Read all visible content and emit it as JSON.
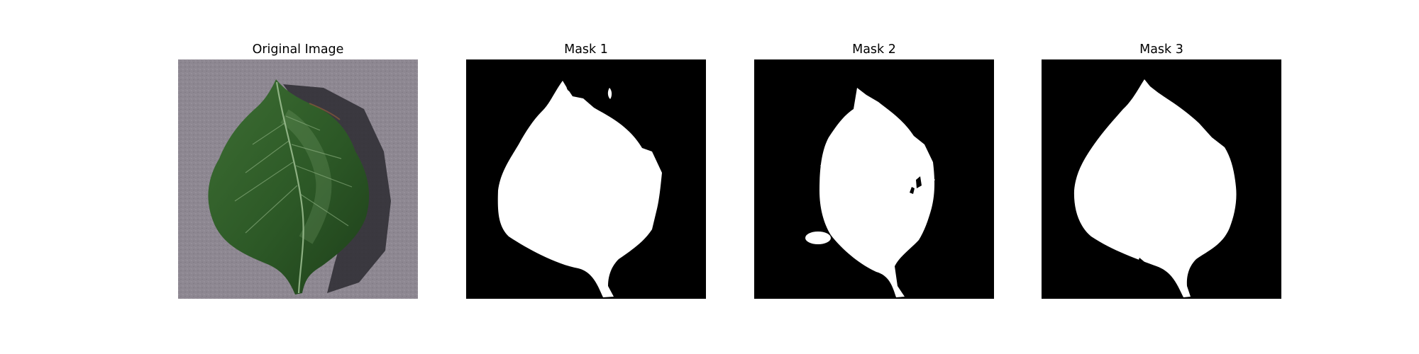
{
  "figure": {
    "panels": [
      {
        "title": "Original Image",
        "kind": "photo"
      },
      {
        "title": "Mask 1",
        "kind": "mask"
      },
      {
        "title": "Mask 2",
        "kind": "mask"
      },
      {
        "title": "Mask 3",
        "kind": "mask"
      }
    ]
  },
  "colors": {
    "background": "#ffffff",
    "mask_background": "#000000",
    "mask_foreground": "#ffffff",
    "leaf": "#2f5a27",
    "leaf_dark": "#1f3e1a",
    "surface": "#8c8690"
  }
}
